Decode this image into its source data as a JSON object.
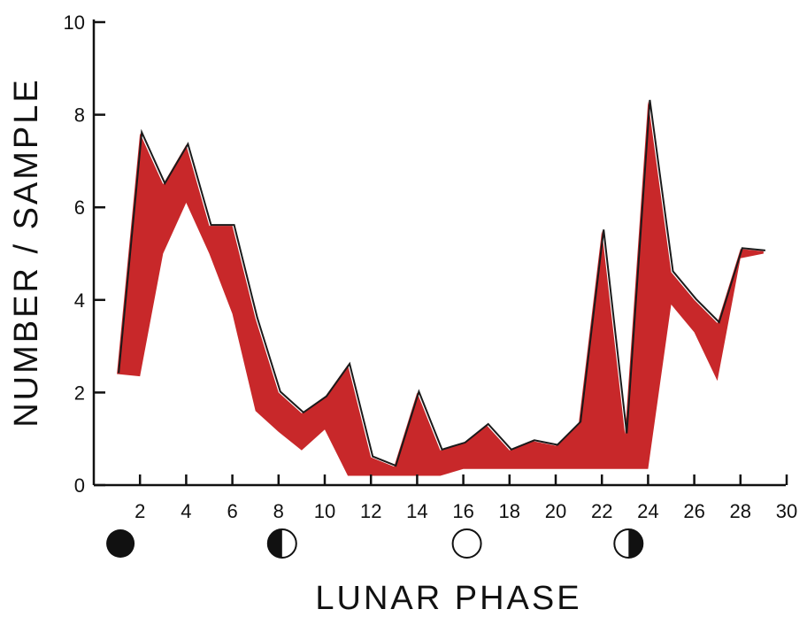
{
  "chart_data": {
    "type": "area",
    "xlabel": "LUNAR PHASE",
    "ylabel": "NUMBER / SAMPLE",
    "xlim": [
      0,
      30
    ],
    "ylim": [
      0,
      10
    ],
    "x_ticks": [
      2,
      4,
      6,
      8,
      10,
      12,
      14,
      16,
      18,
      20,
      22,
      24,
      26,
      28,
      30
    ],
    "y_ticks": [
      0,
      2,
      4,
      6,
      8,
      10
    ],
    "grid": false,
    "band_color": "#c8282a",
    "band_upper": {
      "x": [
        1,
        2,
        3,
        4,
        5,
        6,
        7,
        8,
        9,
        10,
        11,
        12,
        13,
        14,
        15,
        16,
        17,
        18,
        19,
        20,
        21,
        22,
        23,
        24,
        25,
        26,
        27,
        28,
        29
      ],
      "y": [
        2.4,
        7.6,
        6.5,
        7.35,
        5.6,
        5.6,
        3.6,
        2.0,
        1.55,
        1.9,
        2.6,
        0.6,
        0.4,
        2.0,
        0.75,
        0.9,
        1.3,
        0.75,
        0.95,
        0.85,
        1.35,
        5.5,
        1.1,
        8.3,
        4.6,
        4.0,
        3.5,
        5.1,
        5.05
      ]
    },
    "band_lower": {
      "x": [
        1,
        2,
        3,
        4,
        5,
        6,
        7,
        8,
        9,
        10,
        11,
        12,
        13,
        14,
        15,
        16,
        17,
        18,
        19,
        20,
        21,
        22,
        23,
        24,
        25,
        26,
        27,
        28,
        29
      ],
      "y": [
        2.4,
        2.35,
        5.0,
        6.1,
        5.0,
        3.7,
        1.6,
        1.15,
        0.75,
        1.2,
        0.2,
        0.2,
        0.2,
        0.2,
        0.2,
        0.35,
        0.35,
        0.35,
        0.35,
        0.35,
        0.35,
        0.35,
        0.35,
        0.35,
        3.9,
        3.3,
        2.25,
        4.9,
        5.0
      ]
    },
    "moon_phases": [
      {
        "x": 1,
        "phase": "new-moon"
      },
      {
        "x": 8,
        "phase": "first-quarter"
      },
      {
        "x": 16,
        "phase": "full-moon"
      },
      {
        "x": 23,
        "phase": "last-quarter"
      }
    ]
  }
}
